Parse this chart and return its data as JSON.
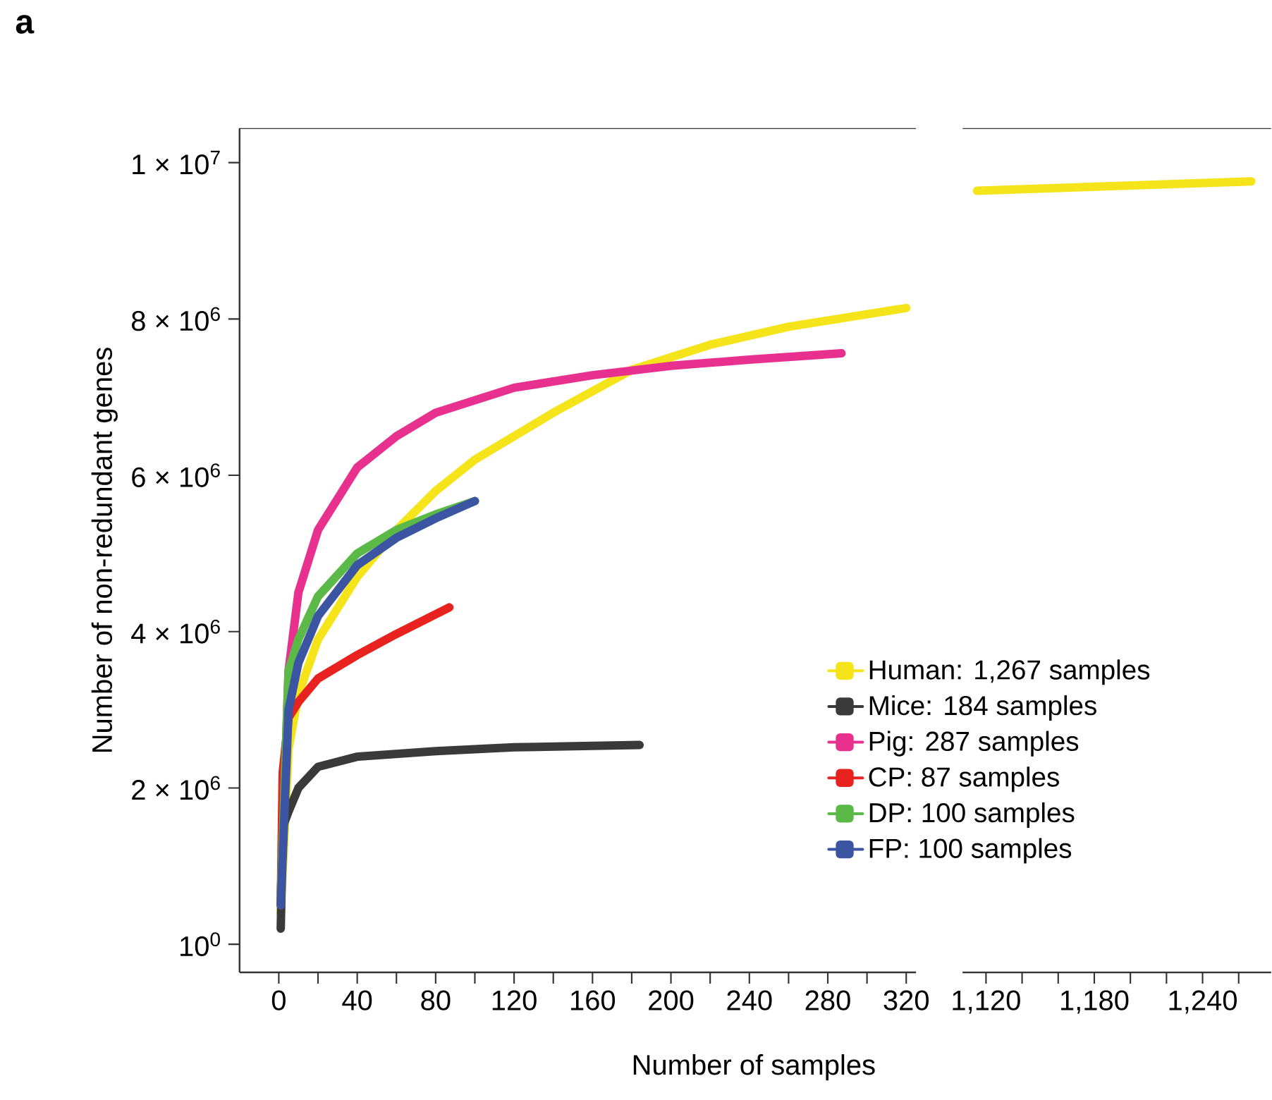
{
  "chart_data": [
    {
      "type": "line",
      "ylabel": "Number of non-redundant genes",
      "xlabel": "Number of samples",
      "annotations": [
        "**a**"
      ],
      "legend": "bottom right",
      "grid": false,
      "marker": "none",
      "line_style": "solid",
      "xlim": [
        -20,
        325
      ],
      "ylim": [
        -360000,
        10440000
      ],
      "xticks": [
        0,
        {
          "value": 20,
          "label": null
        },
        40,
        {
          "value": 60,
          "label": null
        },
        80,
        {
          "value": 100,
          "label": null
        },
        120,
        {
          "value": 140,
          "label": null
        },
        160,
        {
          "value": 180,
          "label": null
        },
        200,
        {
          "value": 220,
          "label": null
        },
        240,
        {
          "value": 260,
          "label": null
        },
        280,
        {
          "value": 300,
          "label": null
        },
        320
      ],
      "yticks": [
        {
          "value": 1,
          "label": "10$^{0}$"
        },
        {
          "value": 2000000,
          "label": "2 × 10$^{6}$"
        },
        {
          "value": 4000000,
          "label": "4 × 10$^{6}$"
        },
        {
          "value": 6000000,
          "label": "6 × 10$^{6}$"
        },
        {
          "value": 8000000,
          "label": "8 × 10$^{6}$"
        },
        {
          "value": 10000000,
          "label": "1 × 10$^{7}$"
        }
      ],
      "series": [
        {
          "name": "Human: 1,267 samples",
          "color": "#f5e41a",
          "x": [
            1,
            5,
            10,
            20,
            40,
            60,
            80,
            100,
            140,
            180,
            220,
            260,
            300,
            320
          ],
          "values": [
            400000,
            2500000,
            3200000,
            3900000,
            4700000,
            5300000,
            5800000,
            6200000,
            6800000,
            7350000,
            7670000,
            7900000,
            8060000,
            8140000
          ]
        },
        {
          "name": "Mice: 184 samples",
          "color": "#3a3a3a",
          "x": [
            1,
            2,
            5,
            10,
            20,
            40,
            80,
            120,
            184
          ],
          "values": [
            200000,
            1500000,
            1700000,
            2000000,
            2270000,
            2400000,
            2470000,
            2520000,
            2550000
          ]
        },
        {
          "name": "Pig: 287 samples",
          "color": "#e8308f",
          "x": [
            1,
            5,
            10,
            20,
            40,
            60,
            80,
            120,
            160,
            200,
            240,
            287
          ],
          "values": [
            600000,
            3500000,
            4500000,
            5300000,
            6100000,
            6500000,
            6800000,
            7120000,
            7280000,
            7400000,
            7480000,
            7560000
          ]
        },
        {
          "name": "CP: 87 samples",
          "color": "#e8231f",
          "x": [
            1,
            2,
            5,
            10,
            20,
            40,
            60,
            87
          ],
          "values": [
            500000,
            2200000,
            2900000,
            3100000,
            3400000,
            3700000,
            3970000,
            4310000
          ]
        },
        {
          "name": "DP: 100 samples",
          "color": "#5ab947",
          "x": [
            1,
            5,
            10,
            20,
            40,
            60,
            80,
            100
          ],
          "values": [
            600000,
            3500000,
            3900000,
            4450000,
            5000000,
            5300000,
            5500000,
            5670000
          ]
        },
        {
          "name": "FP: 100 samples",
          "color": "#3b55a3",
          "x": [
            1,
            5,
            10,
            20,
            40,
            60,
            80,
            100
          ],
          "values": [
            500000,
            3000000,
            3600000,
            4200000,
            4850000,
            5200000,
            5450000,
            5670000
          ]
        }
      ]
    },
    {
      "type": "line",
      "tick_labels": "x",
      "grid": false,
      "marker": "none",
      "line_style": "solid",
      "xlim": [
        1107,
        1278
      ],
      "ylim": [
        -360000,
        10440000
      ],
      "xticks": [
        {
          "value": 1120,
          "label": "1,120"
        },
        {
          "value": 1140,
          "label": null
        },
        {
          "value": 1160,
          "label": null
        },
        {
          "value": 1180,
          "label": "1,180"
        },
        {
          "value": 1200,
          "label": null
        },
        {
          "value": 1220,
          "label": null
        },
        {
          "value": 1240,
          "label": "1,240"
        },
        {
          "value": 1260,
          "label": null
        }
      ],
      "series": [
        {
          "color": "#f5e41a",
          "x": [
            1115,
            1267
          ],
          "values": [
            9640000,
            9760000
          ]
        }
      ]
    }
  ]
}
